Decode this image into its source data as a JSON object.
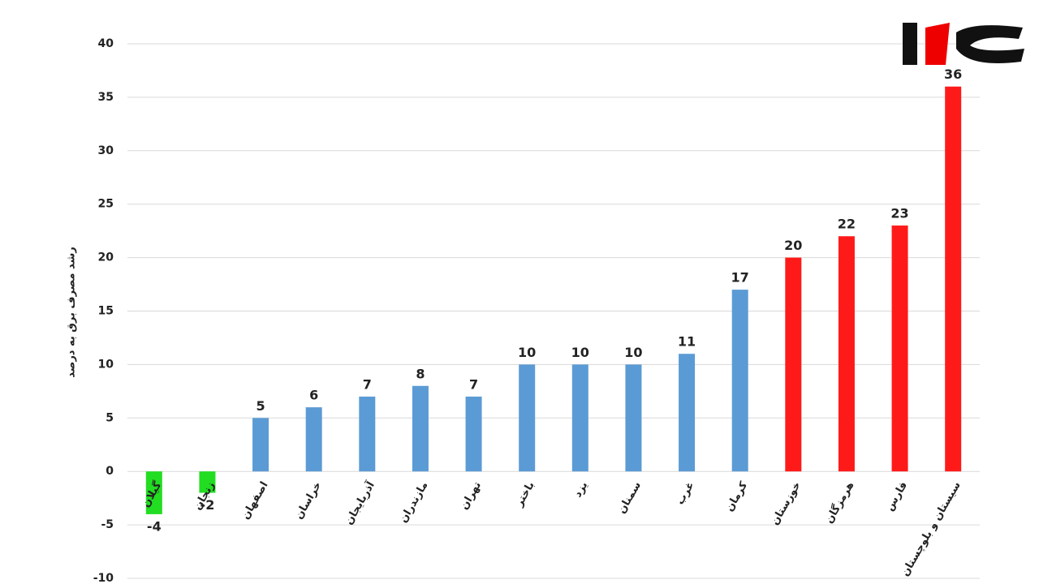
{
  "chart_data": {
    "type": "bar",
    "y_label": "رشد مصرف برق به درصد",
    "categories": [
      "گیلان",
      "زنجان",
      "اصفهان",
      "خراسان",
      "آذربایجان",
      "مازندران",
      "تهران",
      "باختر",
      "یزد",
      "سمنان",
      "غرب",
      "کرمان",
      "خوزستان",
      "هرمزگان",
      "فارس",
      "سیستان و بلوچستان"
    ],
    "values": [
      -4,
      -2,
      5,
      6,
      7,
      8,
      7,
      10,
      10,
      10,
      11,
      17,
      20,
      22,
      23,
      36
    ],
    "colors": [
      "#22dd22",
      "#22dd22",
      "#5b9bd5",
      "#5b9bd5",
      "#5b9bd5",
      "#5b9bd5",
      "#5b9bd5",
      "#5b9bd5",
      "#5b9bd5",
      "#5b9bd5",
      "#5b9bd5",
      "#5b9bd5",
      "#ff1a1a",
      "#ff1a1a",
      "#ff1a1a",
      "#ff1a1a"
    ],
    "ylim": [
      -10,
      40
    ],
    "yticks": [
      -10,
      -5,
      0,
      5,
      10,
      15,
      20,
      25,
      30,
      35,
      40
    ],
    "grid": true
  }
}
